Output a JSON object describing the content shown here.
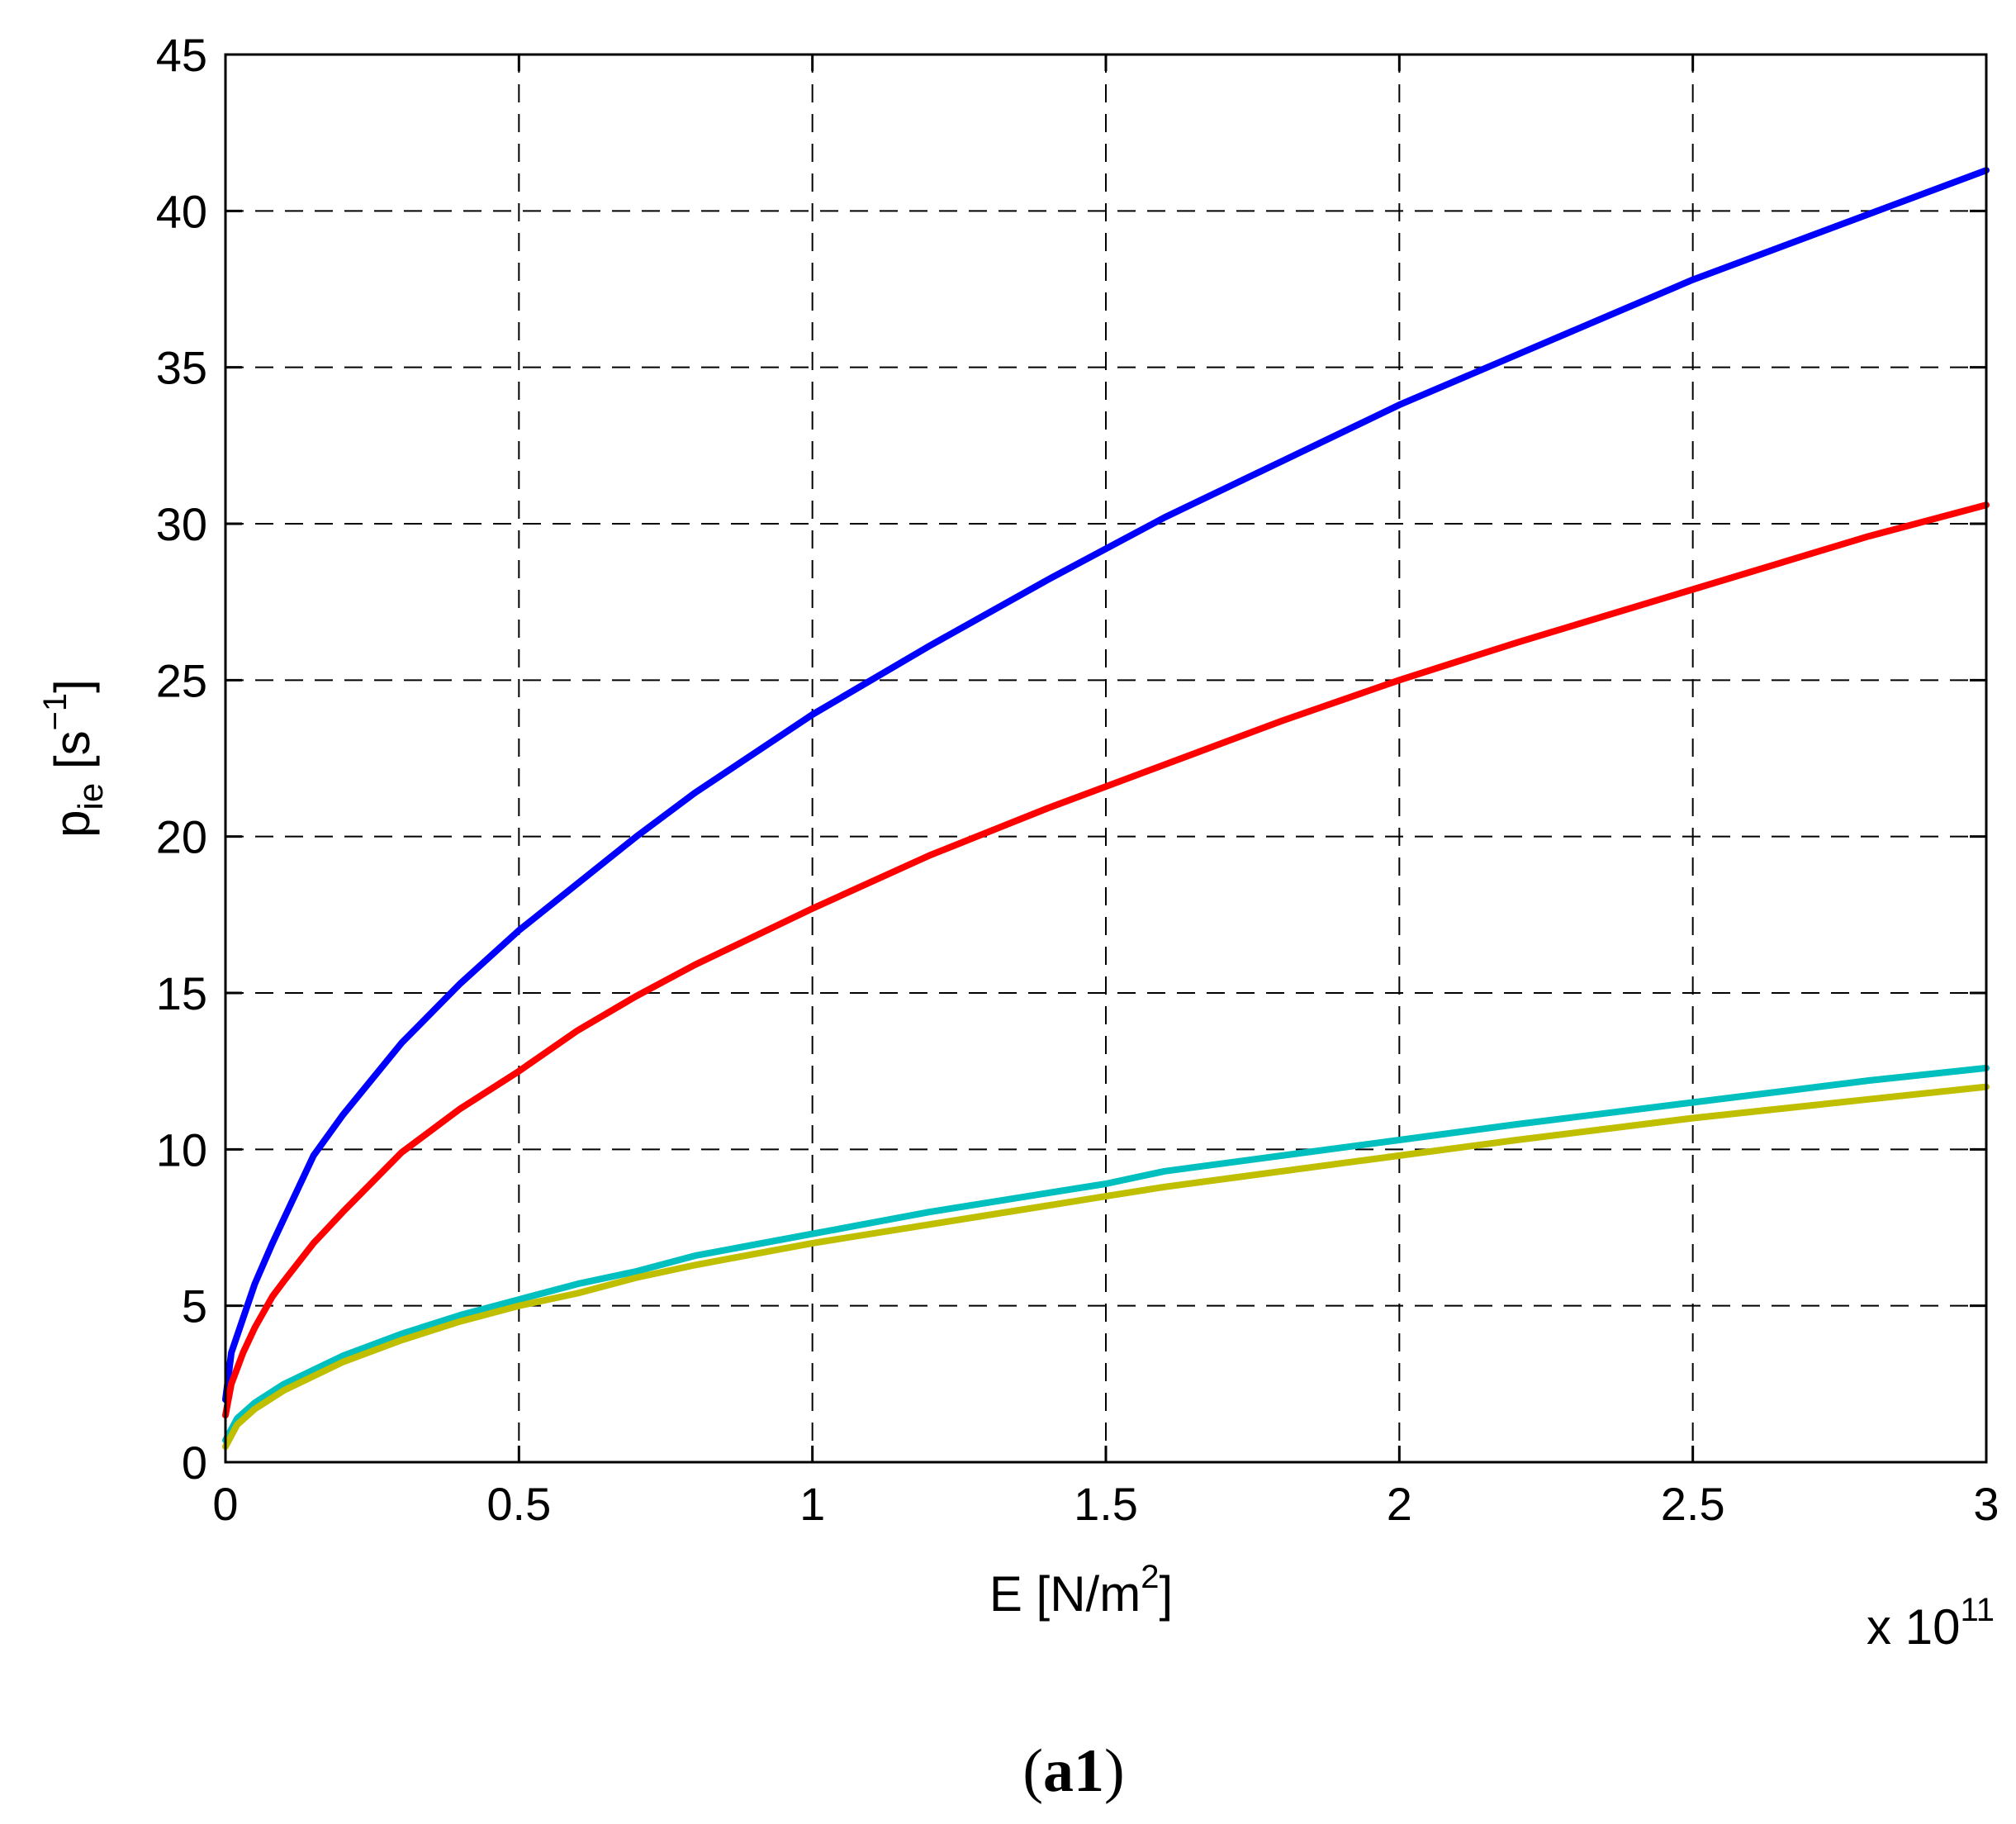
{
  "chart_data": {
    "type": "line",
    "title": "",
    "xlabel": {
      "base": "E [N/m",
      "sup": "2",
      "tail": "]"
    },
    "ylabel": {
      "base": "p",
      "sub": "ie",
      "mid": " [s",
      "sup": "−1",
      "tail": "]"
    },
    "x_multiplier": {
      "base": "x 10",
      "sup": "11"
    },
    "xlim": [
      0,
      3
    ],
    "ylim": [
      0,
      45
    ],
    "xticks": [
      0,
      0.5,
      1,
      1.5,
      2,
      2.5,
      3
    ],
    "xtick_labels": [
      "0",
      "0.5",
      "1",
      "1.5",
      "2",
      "2.5",
      "3"
    ],
    "yticks": [
      0,
      5,
      10,
      15,
      20,
      25,
      30,
      35,
      40,
      45
    ],
    "ytick_labels": [
      "0",
      "5",
      "10",
      "15",
      "20",
      "25",
      "30",
      "35",
      "40",
      "45"
    ],
    "grid": true,
    "series": [
      {
        "color": "#0000ff",
        "x": [
          0,
          0.01,
          0.03,
          0.05,
          0.08,
          0.1,
          0.15,
          0.2,
          0.3,
          0.4,
          0.5,
          0.6,
          0.7,
          0.8,
          1.0,
          1.2,
          1.4,
          1.5,
          1.6,
          1.8,
          2.0,
          2.2,
          2.5,
          2.8,
          3.0
        ],
        "values": [
          2.0,
          3.5,
          4.6,
          5.7,
          7.0,
          7.8,
          9.8,
          11.1,
          13.4,
          15.3,
          17.0,
          18.5,
          20.0,
          21.4,
          23.9,
          26.1,
          28.2,
          29.2,
          30.2,
          32.0,
          33.8,
          35.4,
          37.8,
          39.9,
          41.3
        ]
      },
      {
        "color": "#ff0000",
        "x": [
          0,
          0.01,
          0.03,
          0.05,
          0.08,
          0.1,
          0.15,
          0.2,
          0.3,
          0.4,
          0.5,
          0.6,
          0.7,
          0.8,
          1.0,
          1.2,
          1.4,
          1.5,
          1.6,
          1.8,
          2.0,
          2.2,
          2.5,
          2.8,
          3.0
        ],
        "values": [
          1.5,
          2.5,
          3.5,
          4.3,
          5.3,
          5.8,
          7.0,
          8.0,
          9.9,
          11.3,
          12.5,
          13.8,
          14.9,
          15.9,
          17.7,
          19.4,
          20.9,
          21.6,
          22.3,
          23.7,
          25.0,
          26.2,
          27.9,
          29.6,
          30.6
        ]
      },
      {
        "color": "#00bfbf",
        "x": [
          0,
          0.02,
          0.05,
          0.1,
          0.2,
          0.3,
          0.4,
          0.5,
          0.6,
          0.7,
          0.8,
          1.0,
          1.2,
          1.4,
          1.5,
          1.6,
          1.8,
          2.0,
          2.2,
          2.5,
          2.8,
          3.0
        ],
        "values": [
          0.7,
          1.4,
          1.9,
          2.5,
          3.4,
          4.1,
          4.7,
          5.2,
          5.7,
          6.1,
          6.6,
          7.3,
          8.0,
          8.6,
          8.9,
          9.3,
          9.8,
          10.3,
          10.8,
          11.5,
          12.2,
          12.6
        ]
      },
      {
        "color": "#bfbf00",
        "x": [
          0,
          0.02,
          0.05,
          0.1,
          0.2,
          0.3,
          0.4,
          0.5,
          0.6,
          0.7,
          0.8,
          1.0,
          1.2,
          1.4,
          1.5,
          1.6,
          1.8,
          2.0,
          2.2,
          2.5,
          2.8,
          3.0
        ],
        "values": [
          0.5,
          1.2,
          1.7,
          2.3,
          3.2,
          3.9,
          4.5,
          5.0,
          5.4,
          5.9,
          6.3,
          7.0,
          7.6,
          8.2,
          8.5,
          8.8,
          9.3,
          9.8,
          10.3,
          11.0,
          11.6,
          12.0
        ]
      }
    ]
  },
  "caption": {
    "open": "(",
    "body": "a1",
    "close": ")"
  }
}
